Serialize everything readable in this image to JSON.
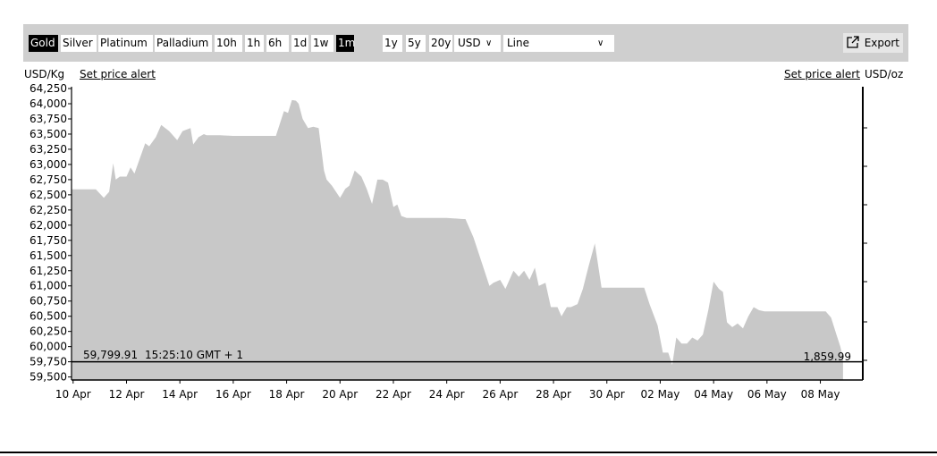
{
  "toolbar": {
    "metals": [
      {
        "label": "Gold",
        "active": true
      },
      {
        "label": "Silver",
        "active": false
      },
      {
        "label": "Platinum",
        "active": false
      },
      {
        "label": "Palladium",
        "active": false
      }
    ],
    "ranges": [
      {
        "label": "10h",
        "active": false
      },
      {
        "label": "1h",
        "active": false
      },
      {
        "label": "6h",
        "active": false
      },
      {
        "label": "1d",
        "active": false
      },
      {
        "label": "1w",
        "active": false
      },
      {
        "label": "1m",
        "active": true
      }
    ],
    "ranges2": [
      {
        "label": "1y",
        "active": false
      },
      {
        "label": "5y",
        "active": false
      },
      {
        "label": "20y",
        "active": false
      }
    ],
    "currency": "USD",
    "chart_type": "Line",
    "export_label": "Export"
  },
  "left_unit": "USD/Kg",
  "right_unit": "USD/oz",
  "set_alert_left": "Set price alert",
  "set_alert_right": "Set price alert",
  "current": {
    "value_kg": "59,799.91",
    "time": "15:25:10 GMT + 1",
    "value_oz": "1,859.99"
  },
  "colors": {
    "area": "#c8c8c8",
    "toolbar": "#cfcfcf",
    "active": "#000000"
  },
  "chart_data": {
    "type": "area",
    "ylabel": "USD/Kg",
    "ylabel_right": "USD/oz",
    "ylim": [
      59450,
      64280
    ],
    "yticks": [
      59500,
      59750,
      60000,
      60250,
      60500,
      60750,
      61000,
      61250,
      61500,
      61750,
      62000,
      62250,
      62500,
      62750,
      63000,
      63250,
      63500,
      63750,
      64000,
      64250
    ],
    "ytick_labels": [
      "59,500",
      "59,750",
      "60,000",
      "60,250",
      "60,500",
      "60,750",
      "61,000",
      "61,250",
      "61,500",
      "61,750",
      "62,000",
      "62,250",
      "62,500",
      "62,750",
      "63,000",
      "63,250",
      "63,500",
      "63,750",
      "64,000",
      "64,250"
    ],
    "xlim": [
      -0.06,
      29.59
    ],
    "xticks": [
      0,
      2,
      4,
      6,
      8,
      10,
      12,
      14,
      16,
      18,
      20,
      22,
      24,
      26,
      28
    ],
    "xtick_labels": [
      "10 Apr",
      "12 Apr",
      "14 Apr",
      "16 Apr",
      "18 Apr",
      "20 Apr",
      "22 Apr",
      "24 Apr",
      "26 Apr",
      "28 Apr",
      "30 Apr",
      "02 May",
      "04 May",
      "06 May",
      "08 May"
    ],
    "grid": false,
    "series": [
      {
        "x": [
          -0.06,
          0.85,
          1.15,
          1.35,
          1.5,
          1.6,
          1.75,
          2.0,
          2.15,
          2.3,
          2.5,
          2.7,
          2.85,
          3.1,
          3.3,
          3.6,
          3.9,
          4.1,
          4.4,
          4.5,
          4.7,
          4.9,
          5.0,
          5.2,
          5.5,
          6.0,
          7.0,
          7.6,
          7.9,
          8.05,
          8.2,
          8.35,
          8.45,
          8.6,
          8.8,
          9.0,
          9.2,
          9.4,
          9.5,
          9.7,
          10.0,
          10.2,
          10.35,
          10.55,
          10.8,
          11.0,
          11.2,
          11.4,
          11.6,
          11.8,
          12.0,
          12.15,
          12.3,
          12.5,
          12.7,
          13.0,
          14.0,
          14.6,
          14.7,
          15.0,
          15.3,
          15.6,
          15.75,
          16.0,
          16.2,
          16.5,
          16.7,
          16.9,
          17.1,
          17.3,
          17.45,
          17.7,
          17.9,
          18.15,
          18.3,
          18.5,
          18.65,
          18.9,
          19.1,
          19.3,
          19.55,
          19.8,
          21.1,
          21.4,
          21.6,
          21.9,
          22.1,
          22.3,
          22.45,
          22.6,
          22.8,
          23.0,
          23.2,
          23.4,
          23.6,
          23.8,
          24.0,
          24.2,
          24.35,
          24.5,
          24.7,
          24.9,
          25.1,
          25.3,
          25.5,
          25.7,
          25.9,
          26.2,
          26.7,
          28.2,
          28.4,
          28.6,
          28.75,
          28.8,
          28.85
        ],
        "y": [
          62590,
          62590,
          62450,
          62550,
          63020,
          62750,
          62800,
          62800,
          62950,
          62850,
          63100,
          63350,
          63300,
          63450,
          63650,
          63550,
          63400,
          63550,
          63600,
          63330,
          63450,
          63500,
          63480,
          63480,
          63480,
          63470,
          63470,
          63470,
          63880,
          63850,
          64060,
          64050,
          64000,
          63750,
          63600,
          63620,
          63600,
          62900,
          62750,
          62650,
          62450,
          62600,
          62650,
          62900,
          62800,
          62600,
          62350,
          62750,
          62750,
          62700,
          62300,
          62340,
          62150,
          62120,
          62120,
          62120,
          62120,
          62100,
          62100,
          61800,
          61400,
          61000,
          61050,
          61100,
          60950,
          61250,
          61150,
          61250,
          61100,
          61300,
          61000,
          61050,
          60650,
          60650,
          60500,
          60650,
          60650,
          60700,
          60950,
          61300,
          61700,
          60970,
          60970,
          60970,
          60700,
          60350,
          59900,
          59900,
          59700,
          60150,
          60050,
          60050,
          60150,
          60100,
          60200,
          60600,
          61070,
          60950,
          60900,
          60400,
          60320,
          60380,
          60300,
          60500,
          60650,
          60600,
          60580,
          60580,
          60580,
          60580,
          60480,
          60200,
          60000,
          59900,
          59800
        ]
      }
    ]
  }
}
